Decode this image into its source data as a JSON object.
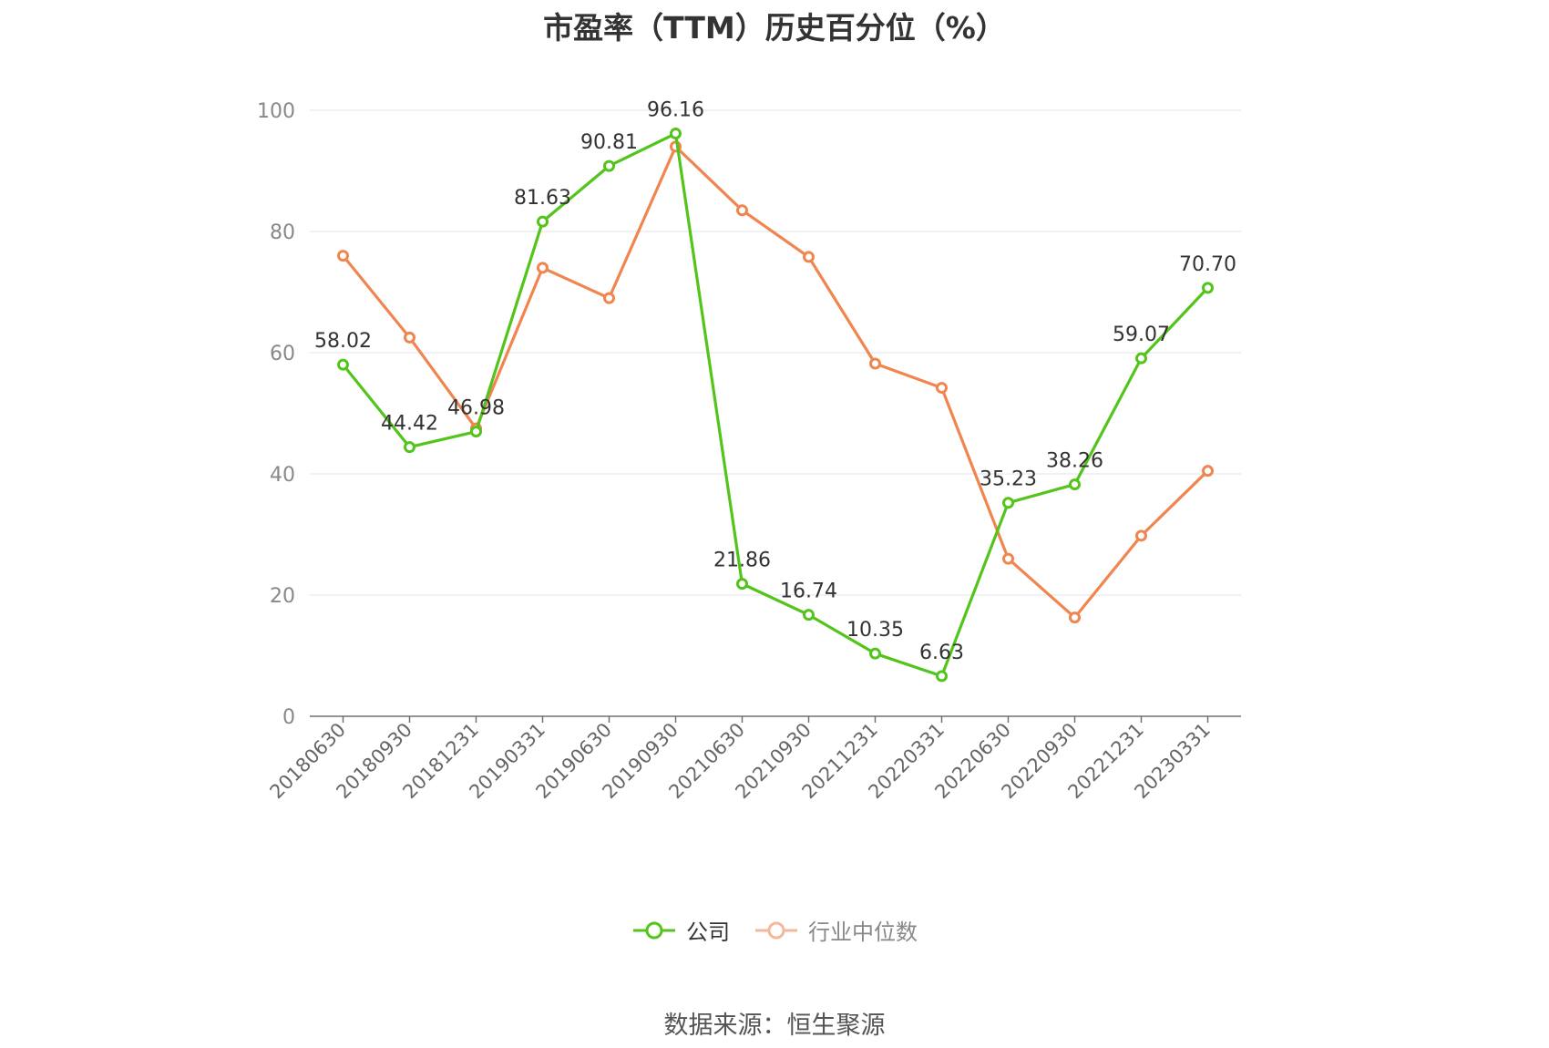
{
  "chart_data": {
    "type": "line",
    "title": "市盈率（TTM）历史百分位（%）",
    "xlabel": "",
    "ylabel": "",
    "categories": [
      "20180630",
      "20180930",
      "20181231",
      "20190331",
      "20190630",
      "20190930",
      "20210630",
      "20210930",
      "20211231",
      "20220331",
      "20220630",
      "20220930",
      "20221231",
      "20230331"
    ],
    "ylim": [
      0,
      100
    ],
    "yticks": [
      0,
      20,
      40,
      60,
      80,
      100
    ],
    "grid": true,
    "legend_position": "bottom",
    "series": [
      {
        "name": "公司",
        "color": "#52c41a",
        "values": [
          58.02,
          44.42,
          46.98,
          81.63,
          90.81,
          96.16,
          21.86,
          16.74,
          10.35,
          6.63,
          35.23,
          38.26,
          59.07,
          70.7
        ],
        "labels": [
          "58.02",
          "44.42",
          "46.98",
          "81.63",
          "90.81",
          "96.16",
          "21.86",
          "16.74",
          "10.35",
          "6.63",
          "35.23",
          "38.26",
          "59.07",
          "70.70"
        ]
      },
      {
        "name": "行业中位数",
        "color": "#f0854f",
        "values": [
          76.0,
          62.5,
          47.5,
          74.0,
          69.0,
          94.0,
          83.5,
          75.8,
          58.2,
          54.2,
          26.0,
          16.3,
          29.8,
          40.5
        ]
      }
    ]
  },
  "legend": {
    "company": "公司",
    "industry": "行业中位数"
  },
  "source": "数据来源：恒生聚源"
}
